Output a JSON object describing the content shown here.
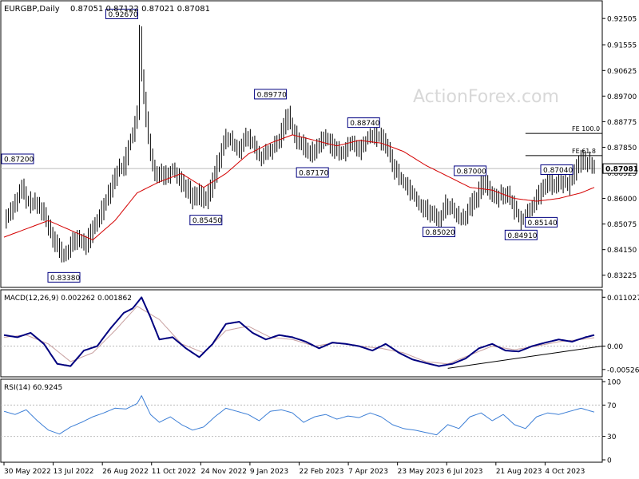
{
  "header": {
    "symbol": "EURGBP,Daily",
    "ohlc": "0.87051 0.87122 0.87021 0.87081"
  },
  "watermark": "ActionForex.com",
  "colors": {
    "background": "#ffffff",
    "candles": "#000000",
    "moving_average": "#d40000",
    "macd": "#00007f",
    "signal": "#c8a0a0",
    "rsi": "#3d7fd6",
    "trendline": "#000000",
    "label_border": "#000080",
    "grid": "#bbbbbb",
    "axis": "#000000"
  },
  "chart_data": [
    {
      "type": "candlestick",
      "panel": "price",
      "title": "EURGBP,Daily",
      "y_ticks": [
        "0.92505",
        "0.91555",
        "0.90625",
        "0.89700",
        "0.88775",
        "0.87850",
        "0.86925",
        "0.86000",
        "0.85075",
        "0.84150",
        "0.83225"
      ],
      "ylim": [
        0.829,
        0.93
      ],
      "x_ticks": [
        "30 May 2022",
        "13 Jul 2022",
        "26 Aug 2022",
        "11 Oct 2022",
        "24 Nov 2022",
        "9 Jan 2023",
        "22 Feb 2023",
        "7 Apr 2023",
        "23 May 2023",
        "6 Jul 2023",
        "21 Aug 2023",
        "4 Oct 2023"
      ],
      "last_price": "0.87081",
      "price_path": [
        [
          0,
          0.852
        ],
        [
          3,
          0.856
        ],
        [
          6,
          0.86
        ],
        [
          8,
          0.864
        ],
        [
          10,
          0.859
        ],
        [
          14,
          0.858
        ],
        [
          17,
          0.856
        ],
        [
          20,
          0.85
        ],
        [
          22,
          0.846
        ],
        [
          25,
          0.841
        ],
        [
          27,
          0.839
        ],
        [
          30,
          0.843
        ],
        [
          33,
          0.846
        ],
        [
          36,
          0.843
        ],
        [
          39,
          0.847
        ],
        [
          42,
          0.852
        ],
        [
          45,
          0.858
        ],
        [
          48,
          0.864
        ],
        [
          51,
          0.87
        ],
        [
          54,
          0.872
        ],
        [
          56,
          0.879
        ],
        [
          58,
          0.884
        ],
        [
          60,
          0.89
        ],
        [
          61,
          0.92
        ],
        [
          62,
          0.905
        ],
        [
          64,
          0.888
        ],
        [
          66,
          0.875
        ],
        [
          68,
          0.868
        ],
        [
          70,
          0.87
        ],
        [
          73,
          0.868
        ],
        [
          76,
          0.871
        ],
        [
          79,
          0.867
        ],
        [
          82,
          0.864
        ],
        [
          85,
          0.86
        ],
        [
          88,
          0.862
        ],
        [
          91,
          0.859
        ],
        [
          94,
          0.866
        ],
        [
          97,
          0.875
        ],
        [
          100,
          0.882
        ],
        [
          103,
          0.88
        ],
        [
          106,
          0.878
        ],
        [
          109,
          0.882
        ],
        [
          112,
          0.88
        ],
        [
          115,
          0.875
        ],
        [
          118,
          0.876
        ],
        [
          121,
          0.878
        ],
        [
          124,
          0.881
        ],
        [
          126,
          0.887
        ],
        [
          128,
          0.89
        ],
        [
          130,
          0.885
        ],
        [
          133,
          0.88
        ],
        [
          136,
          0.878
        ],
        [
          139,
          0.876
        ],
        [
          142,
          0.88
        ],
        [
          145,
          0.882
        ],
        [
          148,
          0.879
        ],
        [
          151,
          0.876
        ],
        [
          154,
          0.878
        ],
        [
          157,
          0.88
        ],
        [
          160,
          0.877
        ],
        [
          163,
          0.881
        ],
        [
          166,
          0.883
        ],
        [
          169,
          0.882
        ],
        [
          172,
          0.88
        ],
        [
          175,
          0.872
        ],
        [
          178,
          0.868
        ],
        [
          181,
          0.865
        ],
        [
          184,
          0.862
        ],
        [
          187,
          0.858
        ],
        [
          190,
          0.856
        ],
        [
          193,
          0.854
        ],
        [
          196,
          0.852
        ],
        [
          199,
          0.858
        ],
        [
          202,
          0.856
        ],
        [
          205,
          0.853
        ],
        [
          208,
          0.854
        ],
        [
          210,
          0.857
        ],
        [
          213,
          0.86
        ],
        [
          216,
          0.867
        ],
        [
          218,
          0.864
        ],
        [
          221,
          0.86
        ],
        [
          224,
          0.862
        ],
        [
          227,
          0.861
        ],
        [
          230,
          0.856
        ],
        [
          233,
          0.852
        ],
        [
          236,
          0.855
        ],
        [
          239,
          0.859
        ],
        [
          242,
          0.862
        ],
        [
          245,
          0.867
        ],
        [
          248,
          0.864
        ],
        [
          251,
          0.866
        ],
        [
          254,
          0.865
        ],
        [
          257,
          0.87
        ],
        [
          260,
          0.874
        ],
        [
          263,
          0.873
        ],
        [
          266,
          0.8708
        ]
      ],
      "moving_average": [
        [
          0,
          0.846
        ],
        [
          20,
          0.852
        ],
        [
          40,
          0.845
        ],
        [
          50,
          0.852
        ],
        [
          60,
          0.862
        ],
        [
          70,
          0.866
        ],
        [
          80,
          0.869
        ],
        [
          90,
          0.864
        ],
        [
          100,
          0.869
        ],
        [
          110,
          0.876
        ],
        [
          120,
          0.88
        ],
        [
          130,
          0.883
        ],
        [
          140,
          0.881
        ],
        [
          150,
          0.879
        ],
        [
          160,
          0.881
        ],
        [
          170,
          0.88
        ],
        [
          180,
          0.877
        ],
        [
          190,
          0.872
        ],
        [
          200,
          0.868
        ],
        [
          210,
          0.864
        ],
        [
          220,
          0.863
        ],
        [
          230,
          0.86
        ],
        [
          240,
          0.859
        ],
        [
          250,
          0.86
        ],
        [
          260,
          0.862
        ],
        [
          266,
          0.864
        ]
      ],
      "price_labels": [
        {
          "text": "0.87200",
          "i": 0,
          "v": 0.872,
          "pos": "above"
        },
        {
          "text": "0.92670",
          "i": 61,
          "v": 0.9267,
          "pos": "left"
        },
        {
          "text": "0.83380",
          "i": 27,
          "v": 0.8338,
          "pos": "below"
        },
        {
          "text": "0.85450",
          "i": 91,
          "v": 0.8545,
          "pos": "below"
        },
        {
          "text": "0.89770",
          "i": 128,
          "v": 0.8977,
          "pos": "left"
        },
        {
          "text": "0.88740",
          "i": 170,
          "v": 0.8874,
          "pos": "left"
        },
        {
          "text": "0.87170",
          "i": 139,
          "v": 0.8717,
          "pos": "below"
        },
        {
          "text": "0.87000",
          "i": 218,
          "v": 0.87,
          "pos": "left"
        },
        {
          "text": "0.85020",
          "i": 196,
          "v": 0.8502,
          "pos": "below"
        },
        {
          "text": "0.84910",
          "i": 233,
          "v": 0.8491,
          "pos": "below"
        },
        {
          "text": "0.87040",
          "i": 257,
          "v": 0.8704,
          "pos": "left"
        },
        {
          "text": "0.85140",
          "i": 250,
          "v": 0.8514,
          "pos": "left"
        }
      ],
      "fib_levels": [
        {
          "label": "FE 100.0",
          "value": 0.8835,
          "i_start": 235
        },
        {
          "label": "FE 61.8",
          "value": 0.8755,
          "i_start": 235
        }
      ],
      "annotations": [
        "FE 100.0",
        "FE 61.8"
      ]
    },
    {
      "type": "line",
      "panel": "macd",
      "title": "MACD(12,26,9) 0.002262 0.001862",
      "y_ticks": [
        "0.011027",
        "0.00",
        "-0.005267"
      ],
      "ylim": [
        -0.0062,
        0.0118
      ],
      "series": [
        {
          "name": "MACD",
          "values": [
            [
              0,
              0.0025
            ],
            [
              6,
              0.002
            ],
            [
              12,
              0.003
            ],
            [
              18,
              0.0005
            ],
            [
              24,
              -0.004
            ],
            [
              30,
              -0.0045
            ],
            [
              36,
              -0.001
            ],
            [
              42,
              0.0
            ],
            [
              48,
              0.004
            ],
            [
              54,
              0.0075
            ],
            [
              58,
              0.0085
            ],
            [
              62,
              0.011
            ],
            [
              66,
              0.0065
            ],
            [
              70,
              0.0015
            ],
            [
              76,
              0.002
            ],
            [
              82,
              -0.0005
            ],
            [
              88,
              -0.0025
            ],
            [
              94,
              0.0005
            ],
            [
              100,
              0.005
            ],
            [
              106,
              0.0055
            ],
            [
              112,
              0.003
            ],
            [
              118,
              0.0015
            ],
            [
              124,
              0.0025
            ],
            [
              130,
              0.002
            ],
            [
              136,
              0.001
            ],
            [
              142,
              -0.0005
            ],
            [
              148,
              0.0008
            ],
            [
              154,
              0.0005
            ],
            [
              160,
              0.0
            ],
            [
              166,
              -0.001
            ],
            [
              172,
              0.0005
            ],
            [
              178,
              -0.0015
            ],
            [
              184,
              -0.003
            ],
            [
              190,
              -0.0038
            ],
            [
              196,
              -0.0045
            ],
            [
              202,
              -0.004
            ],
            [
              208,
              -0.0028
            ],
            [
              214,
              -0.0005
            ],
            [
              220,
              0.0005
            ],
            [
              226,
              -0.001
            ],
            [
              232,
              -0.0012
            ],
            [
              238,
              0.0
            ],
            [
              244,
              0.0008
            ],
            [
              250,
              0.0015
            ],
            [
              256,
              0.001
            ],
            [
              262,
              0.002
            ],
            [
              266,
              0.0025
            ]
          ]
        },
        {
          "name": "Signal",
          "values": [
            [
              0,
              0.002
            ],
            [
              10,
              0.0025
            ],
            [
              20,
              0.0005
            ],
            [
              30,
              -0.0035
            ],
            [
              40,
              -0.0015
            ],
            [
              50,
              0.0035
            ],
            [
              60,
              0.009
            ],
            [
              70,
              0.006
            ],
            [
              80,
              0.0005
            ],
            [
              90,
              -0.0015
            ],
            [
              100,
              0.0035
            ],
            [
              110,
              0.0045
            ],
            [
              120,
              0.002
            ],
            [
              130,
              0.0015
            ],
            [
              140,
              0.0
            ],
            [
              150,
              0.0008
            ],
            [
              160,
              0.0
            ],
            [
              170,
              -0.0005
            ],
            [
              180,
              -0.0015
            ],
            [
              190,
              -0.0035
            ],
            [
              200,
              -0.004
            ],
            [
              210,
              -0.002
            ],
            [
              220,
              0.0
            ],
            [
              230,
              -0.0008
            ],
            [
              240,
              0.0
            ],
            [
              250,
              0.001
            ],
            [
              260,
              0.0015
            ],
            [
              266,
              0.0019
            ]
          ]
        }
      ],
      "trendline": [
        [
          200,
          -0.005
        ],
        [
          266,
          0.0
        ]
      ]
    },
    {
      "type": "line",
      "panel": "rsi",
      "title": "RSI(14) 60.9245",
      "y_ticks": [
        "100",
        "70",
        "30",
        "0"
      ],
      "ylim": [
        0,
        100
      ],
      "series": [
        {
          "name": "RSI",
          "values": [
            [
              0,
              62
            ],
            [
              5,
              58
            ],
            [
              10,
              64
            ],
            [
              15,
              50
            ],
            [
              20,
              38
            ],
            [
              25,
              33
            ],
            [
              30,
              42
            ],
            [
              35,
              48
            ],
            [
              40,
              55
            ],
            [
              45,
              60
            ],
            [
              50,
              66
            ],
            [
              55,
              65
            ],
            [
              60,
              72
            ],
            [
              62,
              82
            ],
            [
              66,
              58
            ],
            [
              70,
              48
            ],
            [
              75,
              55
            ],
            [
              80,
              45
            ],
            [
              85,
              38
            ],
            [
              90,
              42
            ],
            [
              95,
              55
            ],
            [
              100,
              66
            ],
            [
              105,
              62
            ],
            [
              110,
              58
            ],
            [
              115,
              50
            ],
            [
              120,
              62
            ],
            [
              125,
              64
            ],
            [
              130,
              60
            ],
            [
              135,
              48
            ],
            [
              140,
              55
            ],
            [
              145,
              58
            ],
            [
              150,
              52
            ],
            [
              155,
              56
            ],
            [
              160,
              54
            ],
            [
              165,
              60
            ],
            [
              170,
              55
            ],
            [
              175,
              45
            ],
            [
              180,
              40
            ],
            [
              185,
              38
            ],
            [
              190,
              35
            ],
            [
              195,
              32
            ],
            [
              200,
              45
            ],
            [
              205,
              40
            ],
            [
              210,
              55
            ],
            [
              215,
              60
            ],
            [
              220,
              50
            ],
            [
              225,
              58
            ],
            [
              230,
              45
            ],
            [
              235,
              40
            ],
            [
              240,
              55
            ],
            [
              245,
              60
            ],
            [
              250,
              58
            ],
            [
              255,
              62
            ],
            [
              260,
              66
            ],
            [
              266,
              61
            ]
          ]
        }
      ]
    }
  ]
}
